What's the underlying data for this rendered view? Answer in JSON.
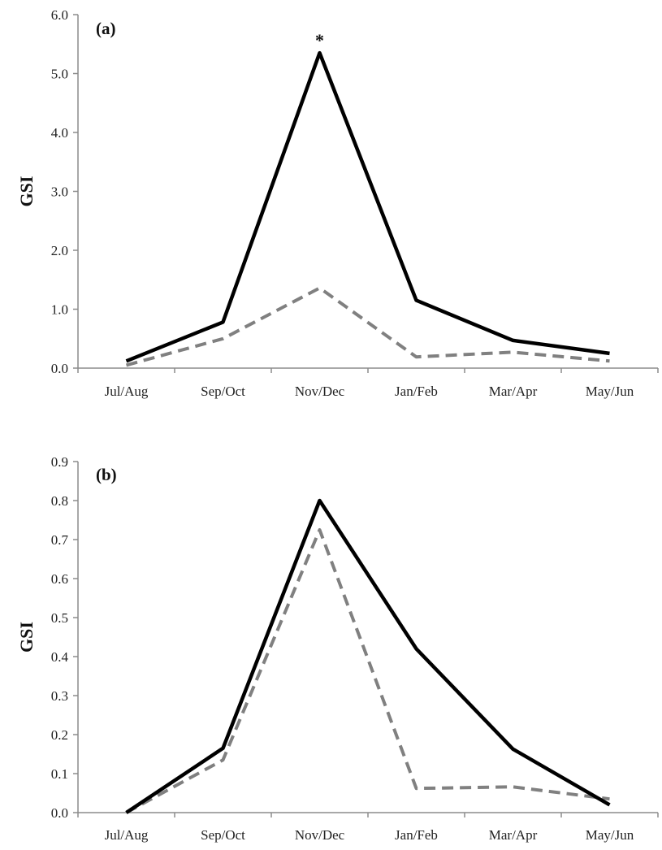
{
  "chart_data": [
    {
      "type": "line",
      "panel_label": "(a)",
      "ylabel": "GSI",
      "xlabel": "",
      "ylim": [
        0,
        6
      ],
      "y_ticks": [
        "0.0",
        "1.0",
        "2.0",
        "3.0",
        "4.0",
        "5.0",
        "6.0"
      ],
      "categories": [
        "Jul/Aug",
        "Sep/Oct",
        "Nov/Dec",
        "Jan/Feb",
        "Mar/Apr",
        "May/Jun"
      ],
      "series": [
        {
          "values": [
            0.12,
            0.78,
            5.35,
            1.15,
            0.47,
            0.25
          ],
          "color": "#000000",
          "style": "solid"
        },
        {
          "values": [
            0.05,
            0.5,
            1.36,
            0.19,
            0.27,
            0.12
          ],
          "color": "#808080",
          "style": "dashed"
        }
      ],
      "annotations": [
        {
          "text": "*",
          "category": "Nov/Dec",
          "series_index": 0
        }
      ],
      "grid": false,
      "legend": "none"
    },
    {
      "type": "line",
      "panel_label": "(b)",
      "ylabel": "GSI",
      "xlabel": "",
      "ylim": [
        0,
        0.9
      ],
      "y_ticks": [
        "0.0",
        "0.1",
        "0.2",
        "0.3",
        "0.4",
        "0.5",
        "0.6",
        "0.7",
        "0.8",
        "0.9"
      ],
      "categories": [
        "Jul/Aug",
        "Sep/Oct",
        "Nov/Dec",
        "Jan/Feb",
        "Mar/Apr",
        "May/Jun"
      ],
      "series": [
        {
          "values": [
            0.0,
            0.165,
            0.8,
            0.42,
            0.163,
            0.02
          ],
          "color": "#000000",
          "style": "solid"
        },
        {
          "values": [
            0.0,
            0.135,
            0.725,
            0.062,
            0.066,
            0.035
          ],
          "color": "#808080",
          "style": "dashed"
        }
      ],
      "annotations": [],
      "grid": false,
      "legend": "none"
    }
  ]
}
